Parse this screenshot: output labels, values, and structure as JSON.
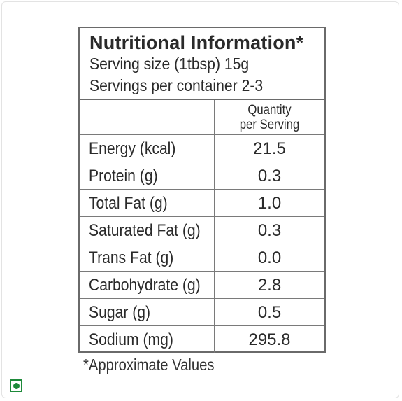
{
  "label": {
    "title": "Nutritional Information*",
    "serving_size": "Serving size (1tbsp) 15g",
    "servings_per_container": "Servings per container 2-3",
    "column_header_line1": "Quantity",
    "column_header_line2": "per Serving",
    "rows": [
      {
        "name": "Energy (kcal)",
        "value": "21.5"
      },
      {
        "name": "Protein (g)",
        "value": "0.3"
      },
      {
        "name": "Total Fat (g)",
        "value": "1.0"
      },
      {
        "name": "Saturated Fat (g)",
        "value": "0.3"
      },
      {
        "name": "Trans Fat (g)",
        "value": "0.0"
      },
      {
        "name": "Carbohydrate (g)",
        "value": "2.8"
      },
      {
        "name": "Sugar (g)",
        "value": "0.5"
      },
      {
        "name": "Sodium (mg)",
        "value": "295.8"
      }
    ],
    "footnote": "*Approximate Values"
  },
  "badge": {
    "icon": "veg-indicator-icon",
    "color": "#1e8a3a"
  },
  "colors": {
    "border": "#6a6a6a",
    "text": "#2a2a2a"
  }
}
